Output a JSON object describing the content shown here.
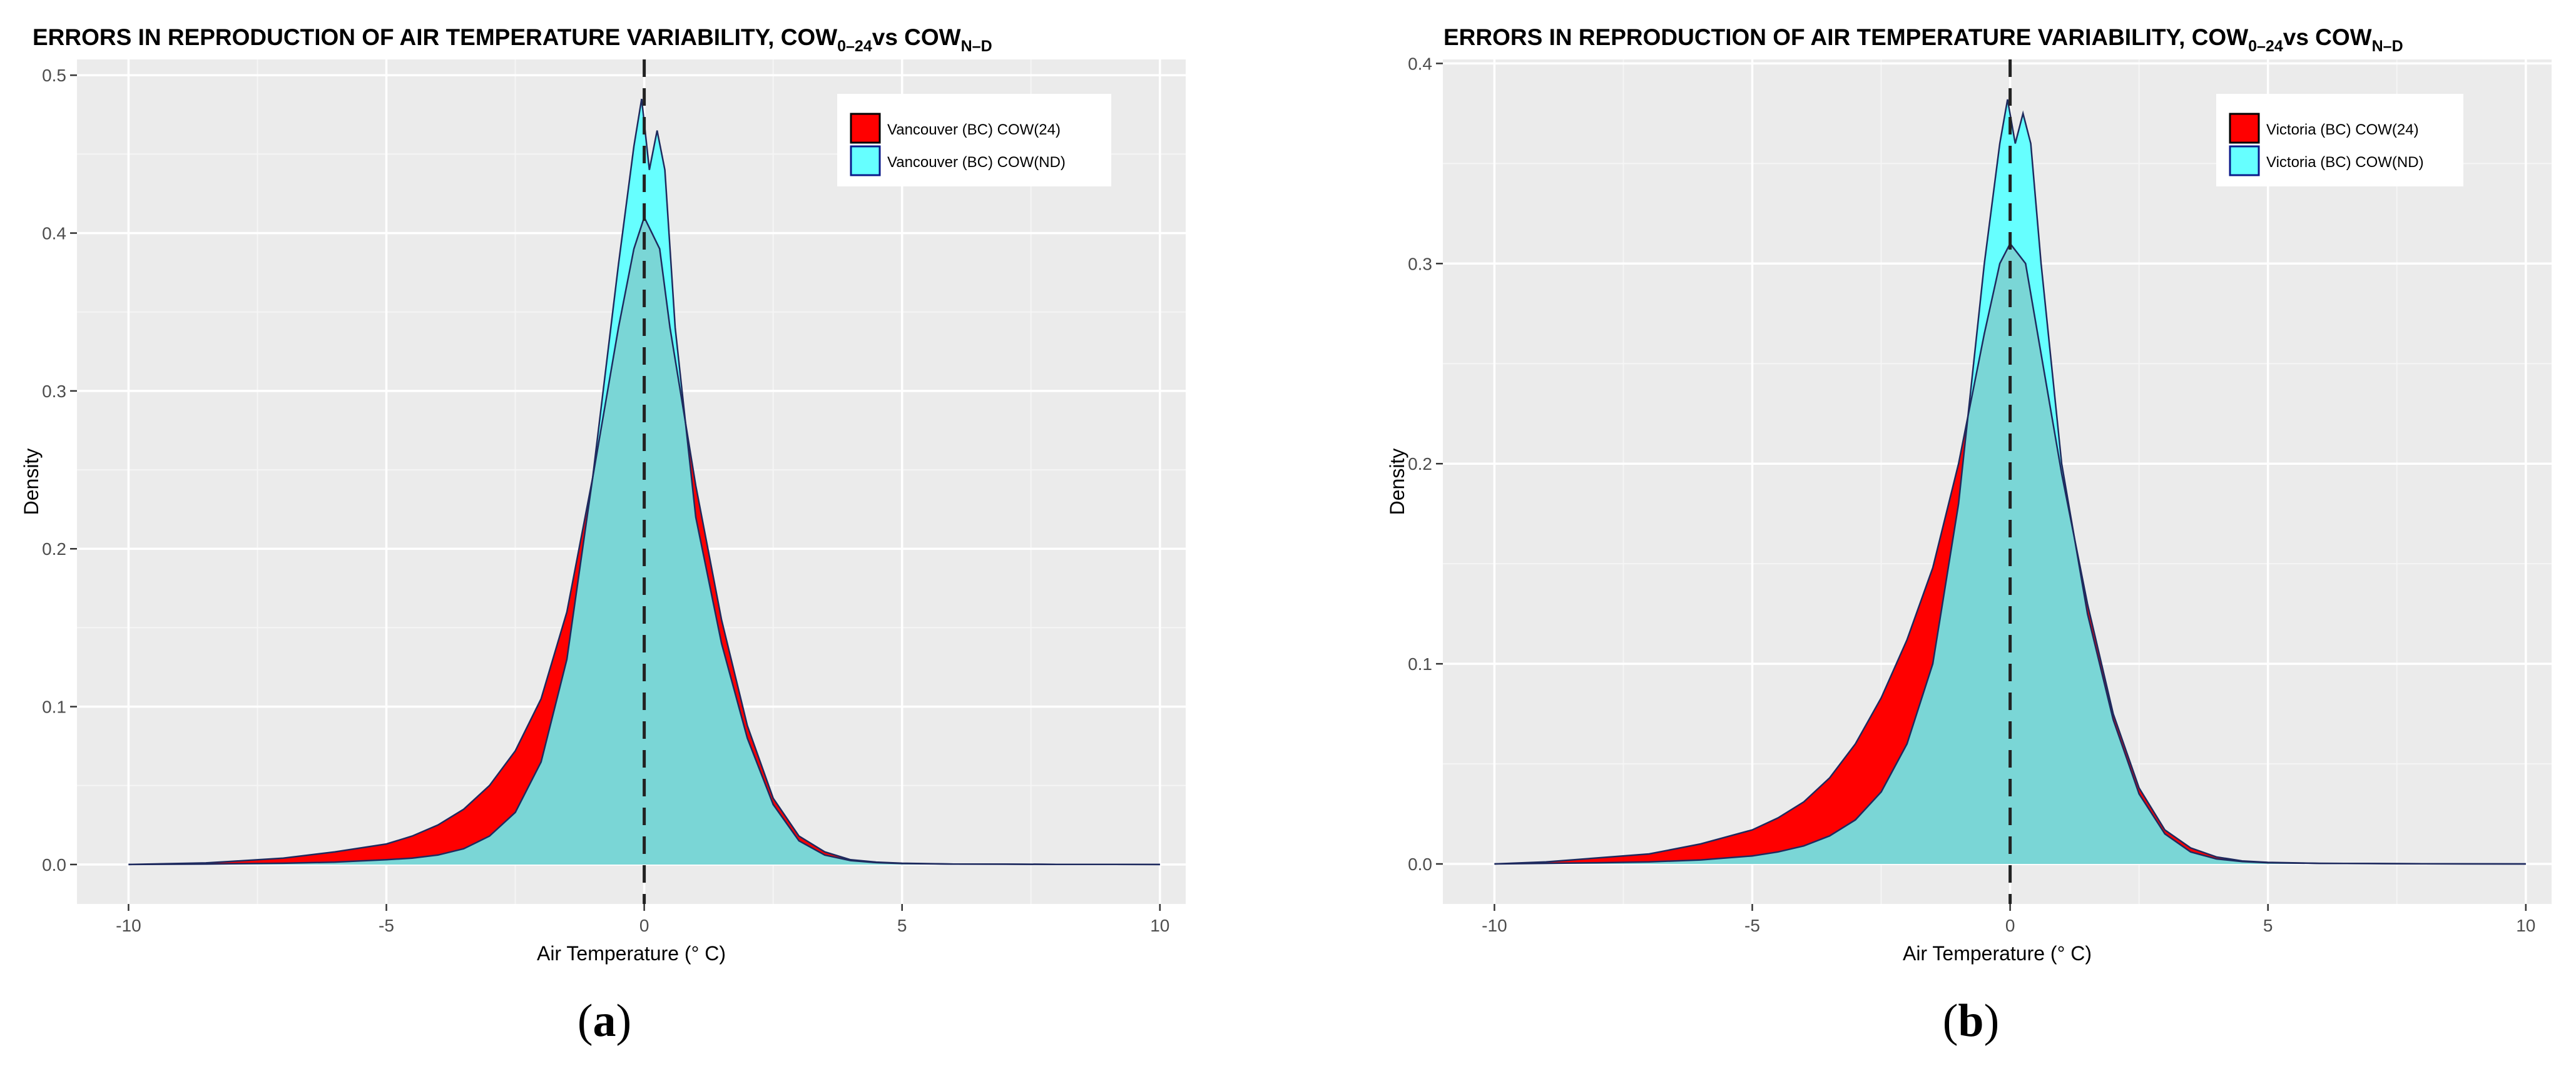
{
  "figure": {
    "panel_labels": [
      {
        "open": "(",
        "letter": "a",
        "close": ")"
      },
      {
        "open": "(",
        "letter": "b",
        "close": ")"
      }
    ]
  },
  "colors": {
    "panel_bg": "#ebebeb",
    "grid_major": "#ffffff",
    "grid_minor": "#f5f5f5",
    "red_fill": "#ff0000",
    "cyan_fill": "#66ffff",
    "overlap_fill": "#7ad6d6",
    "outline": "#1e2a5e",
    "axis_text": "#4d4d4d",
    "tick": "#333333",
    "dash": "#222222"
  },
  "chart_data": [
    {
      "type": "area",
      "title": {
        "main": "ERRORS IN REPRODUCTION OF AIR TEMPERATURE VARIABILITY, COW",
        "sub1": "0–24",
        "mid": "vs COW",
        "sub2": "N–D"
      },
      "xlabel": "Air Temperature (° C)",
      "ylabel": "Density",
      "xlim": [
        -11,
        10.5
      ],
      "ylim": [
        -0.025,
        0.51
      ],
      "xticks": [
        -10,
        -5,
        0,
        5,
        10
      ],
      "xtick_labels": [
        "-10",
        "-5",
        "0",
        "5",
        "10"
      ],
      "yticks": [
        0,
        0.1,
        0.2,
        0.3,
        0.4,
        0.5
      ],
      "ytick_labels": [
        "0.0",
        "0.1",
        "0.2",
        "0.3",
        "0.4",
        "0.5"
      ],
      "vline_x": 0,
      "legend_position": "top-right",
      "grid": true,
      "series": [
        {
          "name": "Vancouver (BC)  COW(24)",
          "color": "#ff0000",
          "x": [
            -10,
            -8.5,
            -8,
            -7,
            -6,
            -5,
            -4.5,
            -4,
            -3.5,
            -3,
            -2.5,
            -2,
            -1.5,
            -1,
            -0.5,
            -0.2,
            0,
            0.15,
            0.3,
            0.5,
            1,
            1.5,
            2,
            2.5,
            3,
            3.5,
            4,
            4.5,
            5,
            6,
            7,
            8,
            10
          ],
          "y": [
            0,
            0.001,
            0.002,
            0.004,
            0.008,
            0.013,
            0.018,
            0.025,
            0.035,
            0.05,
            0.072,
            0.105,
            0.16,
            0.245,
            0.34,
            0.39,
            0.41,
            0.4,
            0.39,
            0.34,
            0.24,
            0.155,
            0.088,
            0.042,
            0.018,
            0.008,
            0.003,
            0.0015,
            0.0008,
            0.0003,
            0.0002,
            0.0001,
            0
          ]
        },
        {
          "name": "Vancouver (BC)  COW(ND)",
          "color": "#66ffff",
          "x": [
            -10,
            -8.5,
            -8,
            -7,
            -6,
            -5,
            -4.5,
            -4,
            -3.5,
            -3,
            -2.5,
            -2,
            -1.5,
            -1,
            -0.5,
            -0.2,
            -0.05,
            0.1,
            0.25,
            0.4,
            0.6,
            1,
            1.5,
            2,
            2.5,
            3,
            3.5,
            4,
            4.5,
            5,
            6,
            7,
            8,
            10
          ],
          "y": [
            0,
            0.0003,
            0.0005,
            0.0008,
            0.0015,
            0.003,
            0.004,
            0.006,
            0.01,
            0.018,
            0.033,
            0.065,
            0.13,
            0.245,
            0.38,
            0.455,
            0.485,
            0.44,
            0.465,
            0.44,
            0.34,
            0.22,
            0.14,
            0.08,
            0.038,
            0.015,
            0.006,
            0.0025,
            0.0012,
            0.0006,
            0.0003,
            0.0002,
            0.0001,
            0
          ]
        }
      ]
    },
    {
      "type": "area",
      "title": {
        "main": "ERRORS IN REPRODUCTION OF AIR TEMPERATURE VARIABILITY, COW",
        "sub1": "0–24",
        "mid": "vs COW",
        "sub2": "N–D"
      },
      "xlabel": "Air Temperature (° C)",
      "ylabel": "Density",
      "xlim": [
        -11,
        10.5
      ],
      "ylim": [
        -0.02,
        0.402
      ],
      "xticks": [
        -10,
        -5,
        0,
        5,
        10
      ],
      "xtick_labels": [
        "-10",
        "-5",
        "0",
        "5",
        "10"
      ],
      "yticks": [
        0,
        0.1,
        0.2,
        0.3,
        0.4
      ],
      "ytick_labels": [
        "0.0",
        "0.1",
        "0.2",
        "0.3",
        "0.4"
      ],
      "vline_x": 0,
      "legend_position": "top-right",
      "grid": true,
      "series": [
        {
          "name": "Victoria (BC)  COW(24)",
          "color": "#ff0000",
          "x": [
            -10,
            -9,
            -8,
            -7,
            -6,
            -5,
            -4.5,
            -4,
            -3.5,
            -3,
            -2.5,
            -2,
            -1.5,
            -1,
            -0.5,
            -0.2,
            0,
            0.15,
            0.3,
            0.5,
            1,
            1.5,
            2,
            2.5,
            3,
            3.5,
            4,
            4.5,
            5,
            6,
            7,
            8,
            10
          ],
          "y": [
            0,
            0.001,
            0.003,
            0.005,
            0.01,
            0.017,
            0.023,
            0.031,
            0.043,
            0.06,
            0.083,
            0.112,
            0.148,
            0.2,
            0.265,
            0.3,
            0.31,
            0.305,
            0.3,
            0.27,
            0.195,
            0.13,
            0.075,
            0.038,
            0.017,
            0.008,
            0.0035,
            0.0015,
            0.0008,
            0.0003,
            0.0002,
            0.0001,
            0
          ]
        },
        {
          "name": "Victoria (BC)  COW(ND)",
          "color": "#66ffff",
          "x": [
            -10,
            -9,
            -8,
            -7,
            -6,
            -5,
            -4.5,
            -4,
            -3.5,
            -3,
            -2.5,
            -2,
            -1.5,
            -1,
            -0.5,
            -0.2,
            -0.05,
            0.1,
            0.25,
            0.4,
            0.6,
            1,
            1.5,
            2,
            2.5,
            3,
            3.5,
            4,
            4.5,
            5,
            6,
            7,
            8,
            10
          ],
          "y": [
            0,
            0.0003,
            0.0006,
            0.001,
            0.002,
            0.004,
            0.006,
            0.009,
            0.014,
            0.022,
            0.036,
            0.06,
            0.1,
            0.18,
            0.3,
            0.36,
            0.382,
            0.36,
            0.375,
            0.36,
            0.3,
            0.2,
            0.125,
            0.072,
            0.035,
            0.015,
            0.006,
            0.0025,
            0.0012,
            0.0006,
            0.0003,
            0.0002,
            0.0001,
            0
          ]
        }
      ]
    }
  ]
}
